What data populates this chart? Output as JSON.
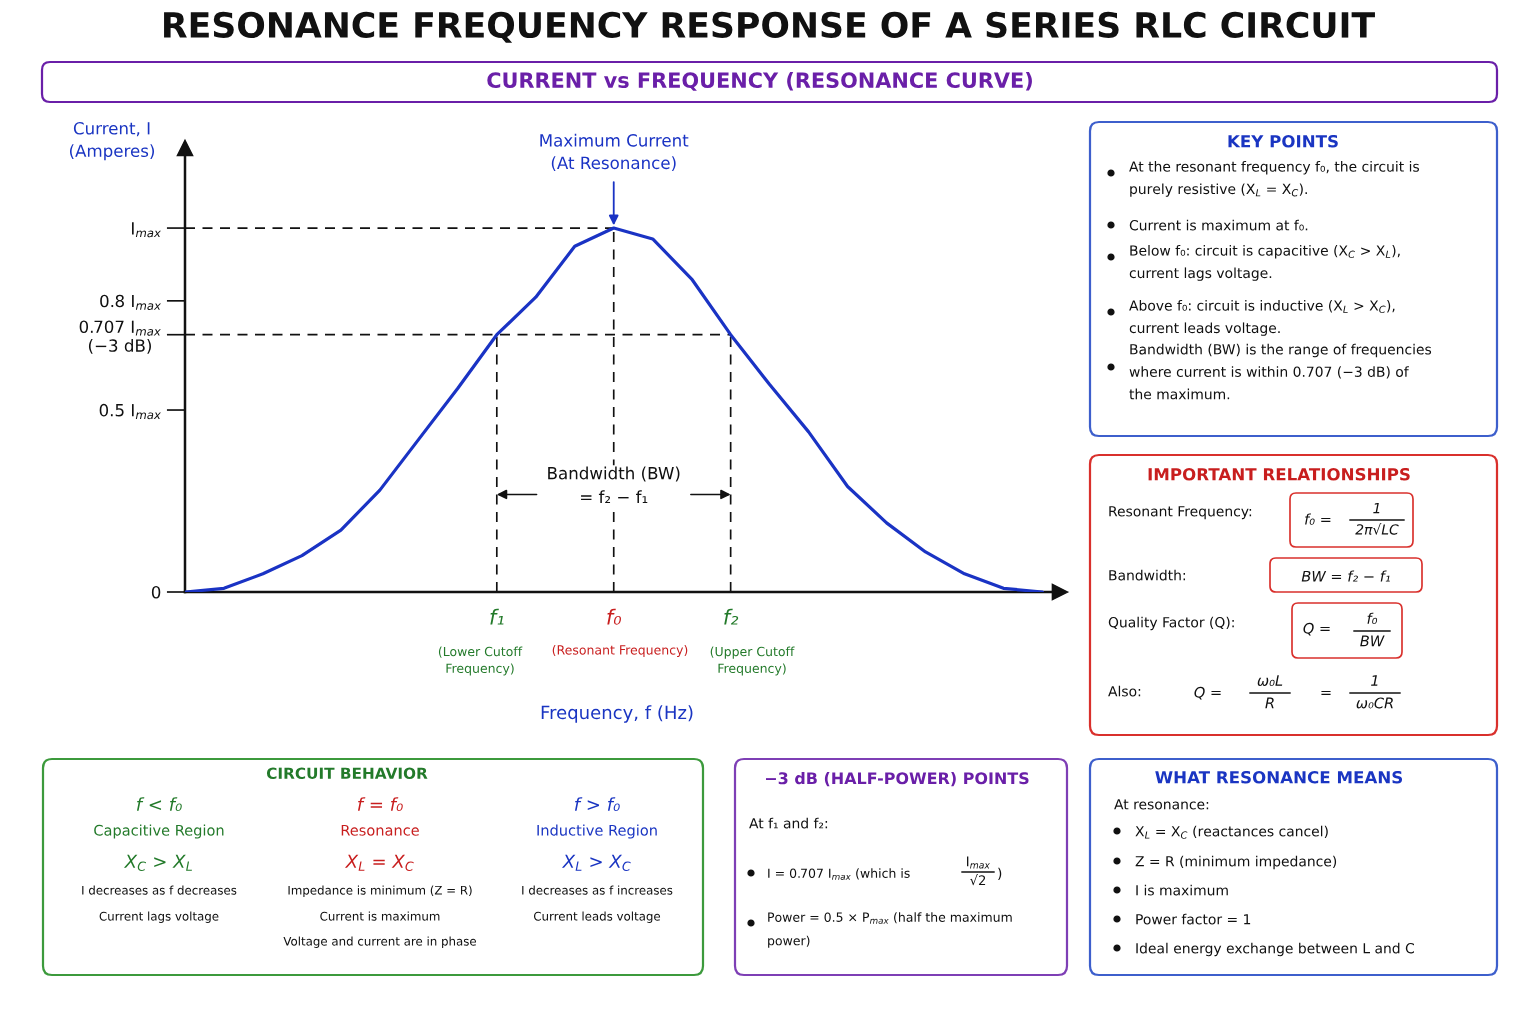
{
  "chart_data": [
    {
      "type": "line",
      "title": "RESONANCE FREQUENCY RESPONSE OF A SERIES RLC CIRCUIT",
      "subtitle": "CURRENT vs FREQUENCY (RESONANCE CURVE)",
      "xlabel": "Frequency, f (Hz)",
      "ylabel": "Current, I\n(Amperes)",
      "categories": [
        null,
        null,
        null,
        null,
        null,
        null,
        null,
        null,
        "f₁",
        null,
        null,
        "f₀",
        null,
        null,
        "f₂",
        null,
        null,
        null,
        null,
        null,
        null,
        null,
        null
      ],
      "series": [
        {
          "color": "#1a33c4",
          "values": [
            0,
            0.01,
            0.05,
            0.1,
            0.17,
            0.28,
            0.42,
            0.56,
            0.707,
            0.81,
            0.95,
            1,
            0.97,
            0.86,
            0.707,
            0.57,
            0.44,
            0.29,
            0.19,
            0.11,
            0.05,
            0.01,
            0
          ]
        }
      ],
      "ylim": [
        0,
        1.22
      ],
      "yticks": [
        0,
        {
          "value": 0.5,
          "label": "0.5 I$_{max}$"
        },
        {
          "value": 0.707,
          "label": "0.707 I$_{max}$\n(−3 dB)"
        },
        {
          "value": 0.8,
          "label": "0.8 I$_{max}$"
        },
        {
          "value": 1,
          "label": "I$_{max}$"
        }
      ],
      "ref_lines": [
        {
          "axis": "y",
          "value": 1,
          "line_style": "dashed"
        },
        {
          "axis": "y",
          "value": 0.707,
          "line_style": "dashed"
        },
        {
          "axis": "x",
          "value": "f₁",
          "line_style": "dashed"
        },
        {
          "axis": "x",
          "value": "f₀",
          "line_style": "dashed"
        },
        {
          "axis": "x",
          "value": "f₂",
          "line_style": "dashed"
        }
      ],
      "annotations": [
        {
          "text": "Maximum Current\n(At Resonance)",
          "x": "f₀",
          "y": 1
        },
        {
          "text": "Bandwidth (BW)\n= f₂ − f₁",
          "x": "f₀",
          "y": 0.29
        },
        "(Lower Cutoff\nFrequency)",
        "(Resonant Frequency)",
        "(Upper Cutoff\nFrequency)"
      ],
      "grid": false
    },
    {
      "type": "other",
      "title": "KEY POINTS",
      "annotations": [
        "At the resonant frequency f₀, the circuit is\npurely resistive (X$_{L}$ = X$_{C}$).",
        "Current is maximum at f₀.",
        "Below f₀: circuit is capacitive (X$_{C}$ > X$_{L}$),\ncurrent lags voltage.",
        "Above f₀: circuit is inductive (X$_{L}$ > X$_{C}$),\ncurrent leads voltage.",
        "Bandwidth (BW) is the range of frequencies\nwhere current is within 0.707 (−3 dB) of\nthe maximum."
      ]
    },
    {
      "type": "other",
      "title": "IMPORTANT RELATIONSHIPS",
      "annotations": [
        "Resonant Frequency:",
        "f₀ =",
        "1\n2π√LC",
        "Bandwidth:",
        "BW = f₂ − f₁",
        "Quality Factor (Q):",
        "Q =",
        "f₀\nBW",
        "Also:",
        "Q =",
        "ω₀L\nR",
        "=",
        "1\nω₀CR"
      ]
    },
    {
      "type": "other",
      "title": "CIRCUIT BEHAVIOR",
      "annotations": [
        "f < f₀",
        "Capacitive Region",
        "X$_{C}$ > X$_{L}$",
        "I decreases as f decreases",
        "Current lags voltage",
        "f = f₀",
        "Resonance",
        "X$_{L}$ = X$_{C}$",
        "Impedance is minimum (Z = R)",
        "Current is maximum",
        "Voltage and current are in phase",
        "f > f₀",
        "Inductive Region",
        "X$_{L}$ > X$_{C}$",
        "I decreases as f increases",
        "Current leads voltage"
      ]
    },
    {
      "type": "other",
      "title": "−3 dB (HALF-POWER) POINTS",
      "annotations": [
        "At f₁ and f₂:",
        "I = 0.707 I$_{max}$ (which is",
        "I$_{max}$\n√2",
        ")",
        "Power = 0.5 × P$_{max}$ (half the maximum\npower)"
      ]
    },
    {
      "type": "other",
      "title": "WHAT RESONANCE MEANS",
      "annotations": [
        "At resonance:",
        "X$_{L}$ = X$_{C}$ (reactances cancel)",
        "Z = R (minimum impedance)",
        "I is maximum",
        "Power factor = 1",
        "Ideal energy exchange between L and C"
      ]
    }
  ]
}
